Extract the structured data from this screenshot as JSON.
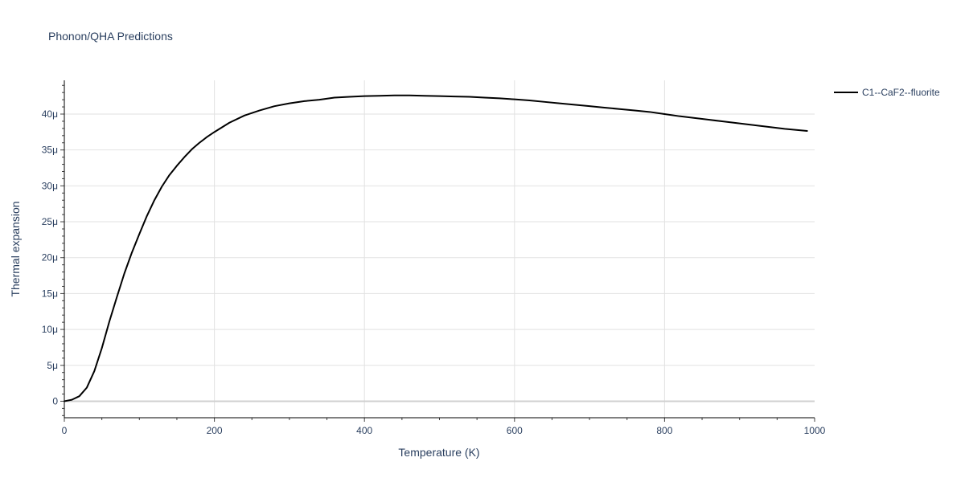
{
  "chart_data": {
    "type": "line",
    "title": "Phonon/QHA Predictions",
    "xlabel": "Temperature (K)",
    "ylabel": "Thermal expansion",
    "xlim": [
      0,
      1000
    ],
    "ylim": [
      -2.3e-06,
      4.47e-05
    ],
    "grid": true,
    "legend_position": "top-right",
    "x_ticks": [
      {
        "value": 0,
        "label": "0"
      },
      {
        "value": 200,
        "label": "200"
      },
      {
        "value": 400,
        "label": "400"
      },
      {
        "value": 600,
        "label": "600"
      },
      {
        "value": 800,
        "label": "800"
      },
      {
        "value": 1000,
        "label": "1000"
      }
    ],
    "y_ticks": [
      {
        "value": 0,
        "label": "0"
      },
      {
        "value": 5e-06,
        "label": "5μ"
      },
      {
        "value": 1e-05,
        "label": "10μ"
      },
      {
        "value": 1.5e-05,
        "label": "15μ"
      },
      {
        "value": 2e-05,
        "label": "20μ"
      },
      {
        "value": 2.5e-05,
        "label": "25μ"
      },
      {
        "value": 3e-05,
        "label": "30μ"
      },
      {
        "value": 3.5e-05,
        "label": "35μ"
      },
      {
        "value": 4e-05,
        "label": "40μ"
      }
    ],
    "series": [
      {
        "name": "C1--CaF2--fluorite",
        "color": "#000000",
        "x": [
          0,
          10,
          20,
          30,
          40,
          50,
          60,
          70,
          80,
          90,
          100,
          110,
          120,
          130,
          140,
          150,
          160,
          170,
          180,
          190,
          200,
          220,
          240,
          260,
          280,
          300,
          320,
          340,
          360,
          380,
          400,
          420,
          440,
          460,
          480,
          500,
          520,
          540,
          560,
          580,
          600,
          620,
          640,
          660,
          680,
          700,
          720,
          740,
          760,
          780,
          800,
          820,
          840,
          860,
          880,
          900,
          920,
          940,
          960,
          970,
          980,
          990
        ],
        "y": [
          0,
          2e-07,
          7e-07,
          1.9e-06,
          4.2e-06,
          7.4e-06,
          1.11e-05,
          1.45e-05,
          1.78e-05,
          2.07e-05,
          2.33e-05,
          2.58e-05,
          2.8e-05,
          2.99e-05,
          3.15e-05,
          3.28e-05,
          3.4e-05,
          3.51e-05,
          3.6e-05,
          3.68e-05,
          3.75e-05,
          3.88e-05,
          3.98e-05,
          4.05e-05,
          4.11e-05,
          4.15e-05,
          4.18e-05,
          4.2e-05,
          4.23e-05,
          4.24e-05,
          4.25e-05,
          4.255e-05,
          4.26e-05,
          4.26e-05,
          4.255e-05,
          4.25e-05,
          4.245e-05,
          4.24e-05,
          4.23e-05,
          4.22e-05,
          4.205e-05,
          4.19e-05,
          4.17e-05,
          4.15e-05,
          4.13e-05,
          4.11e-05,
          4.09e-05,
          4.07e-05,
          4.05e-05,
          4.03e-05,
          4e-05,
          3.97e-05,
          3.945e-05,
          3.92e-05,
          3.895e-05,
          3.87e-05,
          3.845e-05,
          3.82e-05,
          3.795e-05,
          3.785e-05,
          3.775e-05,
          3.765e-05
        ]
      }
    ]
  }
}
